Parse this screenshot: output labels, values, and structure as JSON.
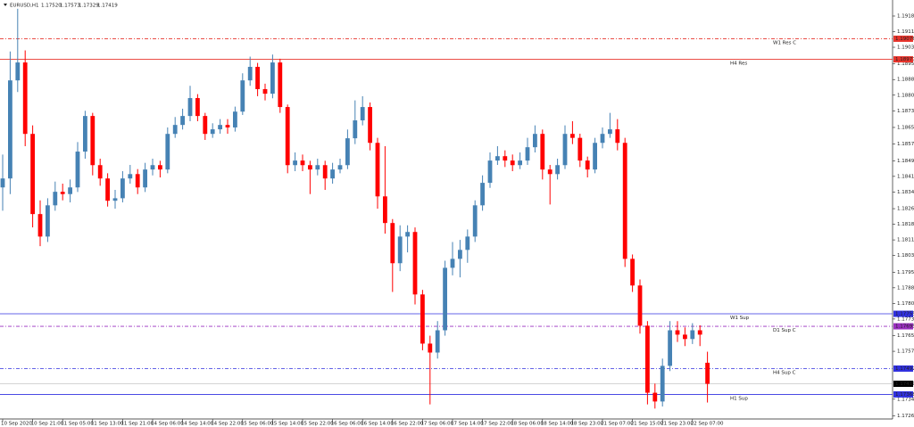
{
  "chart_data": {
    "type": "candlestick",
    "symbol": "EURUSD,H1",
    "quote": [
      "1.17520",
      "1.17573",
      "1.17329",
      "1.17419"
    ],
    "up_color": "#4682b4",
    "down_color": "#ff0000",
    "ylim": [
      1.1725,
      1.19262
    ],
    "yticks": [
      1.19185,
      {
        "value": 1.1911,
        "label": "1.19110"
      },
      1.19035,
      1.18955,
      {
        "value": 1.1888,
        "label": "1.18880"
      },
      1.18805,
      {
        "value": 1.1873,
        "label": "1.18730"
      },
      {
        "value": 1.1865,
        "label": "1.18650"
      },
      {
        "value": 1.1857,
        "label": "1.18570"
      },
      {
        "value": 1.1849,
        "label": "1.18490"
      },
      1.18415,
      {
        "value": 1.1834,
        "label": "1.18340"
      },
      {
        "value": 1.1826,
        "label": "1.18260"
      },
      1.18185,
      {
        "value": 1.1811,
        "label": "1.18110"
      },
      1.18035,
      1.17955,
      {
        "value": 1.1788,
        "label": "1.17880"
      },
      1.17805,
      {
        "value": 1.1773,
        "label": "1.17730"
      },
      {
        "value": 1.1765,
        "label": "1.17650"
      },
      1.17575,
      1.17345,
      1.17265
    ],
    "categories": [
      "10 Sep 2020",
      null,
      null,
      null,
      "10 Sep 21:00",
      null,
      null,
      null,
      "11 Sep 05:00",
      null,
      null,
      null,
      "11 Sep 13:00",
      null,
      null,
      null,
      "11 Sep 21:00",
      null,
      null,
      null,
      "14 Sep 06:00",
      null,
      null,
      null,
      "14 Sep 14:00",
      null,
      null,
      null,
      "14 Sep 22:00",
      null,
      null,
      null,
      "15 Sep 06:00",
      null,
      null,
      null,
      "15 Sep 14:00",
      null,
      null,
      null,
      "15 Sep 22:00",
      null,
      null,
      null,
      "16 Sep 06:00",
      null,
      null,
      null,
      "16 Sep 14:00",
      null,
      null,
      null,
      "16 Sep 22:00",
      null,
      null,
      null,
      "17 Sep 06:00",
      null,
      null,
      null,
      "17 Sep 14:00",
      null,
      null,
      null,
      "17 Sep 22:00",
      null,
      null,
      null,
      "18 Sep 06:00",
      null,
      null,
      null,
      "18 Sep 14:00",
      null,
      null,
      null,
      "18 Sep 23:00",
      null,
      null,
      null,
      "21 Sep 07:00",
      null,
      null,
      null,
      "21 Sep 15:00",
      null,
      null,
      null,
      "21 Sep 23:00",
      null,
      null,
      null,
      "22 Sep 07:00",
      null,
      null
    ],
    "ohlc": [
      [
        1.18362,
        1.1852,
        1.1825,
        1.18405
      ],
      [
        1.18405,
        1.19015,
        1.1833,
        1.18876
      ],
      [
        1.18876,
        1.1922,
        1.1882,
        1.18962
      ],
      [
        1.18962,
        1.1902,
        1.1856,
        1.18619
      ],
      [
        1.18619,
        1.1866,
        1.1817,
        1.18234
      ],
      [
        1.18234,
        1.183,
        1.1808,
        1.18126
      ],
      [
        1.18126,
        1.1831,
        1.181,
        1.18276
      ],
      [
        1.18276,
        1.1839,
        1.1825,
        1.18341
      ],
      [
        1.18341,
        1.1838,
        1.183,
        1.1833
      ],
      [
        1.1833,
        1.184,
        1.1829,
        1.18362
      ],
      [
        1.18362,
        1.1858,
        1.1834,
        1.18534
      ],
      [
        1.18534,
        1.1873,
        1.185,
        1.18705
      ],
      [
        1.18705,
        1.1872,
        1.1842,
        1.18469
      ],
      [
        1.18469,
        1.185,
        1.1837,
        1.18405
      ],
      [
        1.18405,
        1.1843,
        1.1827,
        1.18298
      ],
      [
        1.18298,
        1.1835,
        1.1826,
        1.1831
      ],
      [
        1.1831,
        1.1844,
        1.1829,
        1.18405
      ],
      [
        1.18405,
        1.1847,
        1.1838,
        1.18426
      ],
      [
        1.18426,
        1.1845,
        1.1833,
        1.18362
      ],
      [
        1.18362,
        1.1848,
        1.1834,
        1.18448
      ],
      [
        1.18448,
        1.185,
        1.1842,
        1.18469
      ],
      [
        1.18469,
        1.1849,
        1.1841,
        1.18448
      ],
      [
        1.18448,
        1.1865,
        1.1843,
        1.18619
      ],
      [
        1.18619,
        1.187,
        1.186,
        1.18662
      ],
      [
        1.18662,
        1.1874,
        1.1864,
        1.18705
      ],
      [
        1.18705,
        1.1885,
        1.1868,
        1.18791
      ],
      [
        1.18791,
        1.1881,
        1.1868,
        1.18705
      ],
      [
        1.18705,
        1.1872,
        1.1859,
        1.18619
      ],
      [
        1.18619,
        1.1867,
        1.186,
        1.18641
      ],
      [
        1.18641,
        1.1869,
        1.1862,
        1.18662
      ],
      [
        1.18662,
        1.1869,
        1.1862,
        1.1865
      ],
      [
        1.1865,
        1.1875,
        1.1863,
        1.18726
      ],
      [
        1.18726,
        1.1891,
        1.1871,
        1.18876
      ],
      [
        1.18876,
        1.1899,
        1.1885,
        1.18941
      ],
      [
        1.18941,
        1.1896,
        1.188,
        1.18834
      ],
      [
        1.18834,
        1.1886,
        1.1878,
        1.18812
      ],
      [
        1.18812,
        1.19,
        1.1879,
        1.18962
      ],
      [
        1.18962,
        1.1898,
        1.1872,
        1.18748
      ],
      [
        1.18748,
        1.1876,
        1.1843,
        1.18469
      ],
      [
        1.18469,
        1.1853,
        1.1844,
        1.18491
      ],
      [
        1.18491,
        1.1852,
        1.1844,
        1.18469
      ],
      [
        1.18469,
        1.1849,
        1.1833,
        1.18448
      ],
      [
        1.18448,
        1.185,
        1.1842,
        1.18469
      ],
      [
        1.18469,
        1.1849,
        1.1835,
        1.18405
      ],
      [
        1.18405,
        1.1848,
        1.1838,
        1.18448
      ],
      [
        1.18448,
        1.185,
        1.1843,
        1.18469
      ],
      [
        1.18469,
        1.1864,
        1.1845,
        1.18598
      ],
      [
        1.18598,
        1.1878,
        1.1857,
        1.18684
      ],
      [
        1.18684,
        1.188,
        1.1866,
        1.18748
      ],
      [
        1.18748,
        1.1877,
        1.1854,
        1.18576
      ],
      [
        1.18576,
        1.186,
        1.1826,
        1.18319
      ],
      [
        1.18319,
        1.1856,
        1.1814,
        1.18191
      ],
      [
        1.18191,
        1.1821,
        1.1786,
        1.17998
      ],
      [
        1.17998,
        1.1818,
        1.1796,
        1.18126
      ],
      [
        1.18126,
        1.1818,
        1.1805,
        1.18148
      ],
      [
        1.18148,
        1.1817,
        1.178,
        1.17848
      ],
      [
        1.17848,
        1.1787,
        1.1758,
        1.17612
      ],
      [
        1.17612,
        1.1765,
        1.1732,
        1.17569
      ],
      [
        1.17569,
        1.1772,
        1.1754,
        1.17676
      ],
      [
        1.17676,
        1.1801,
        1.1765,
        1.17976
      ],
      [
        1.17976,
        1.181,
        1.1794,
        1.18019
      ],
      [
        1.18019,
        1.1811,
        1.1793,
        1.18062
      ],
      [
        1.18062,
        1.1816,
        1.18,
        1.18126
      ],
      [
        1.18126,
        1.183,
        1.181,
        1.18276
      ],
      [
        1.18276,
        1.1842,
        1.1825,
        1.18384
      ],
      [
        1.18384,
        1.1853,
        1.1836,
        1.18491
      ],
      [
        1.18491,
        1.1856,
        1.1847,
        1.18512
      ],
      [
        1.18512,
        1.1854,
        1.1846,
        1.18491
      ],
      [
        1.18491,
        1.1852,
        1.1844,
        1.18469
      ],
      [
        1.18469,
        1.1853,
        1.1845,
        1.18491
      ],
      [
        1.18491,
        1.186,
        1.1847,
        1.18555
      ],
      [
        1.18555,
        1.1866,
        1.1853,
        1.18619
      ],
      [
        1.18619,
        1.1864,
        1.184,
        1.18448
      ],
      [
        1.18448,
        1.1847,
        1.1828,
        1.18426
      ],
      [
        1.18426,
        1.185,
        1.184,
        1.18469
      ],
      [
        1.18469,
        1.1866,
        1.1845,
        1.18619
      ],
      [
        1.18619,
        1.1868,
        1.1857,
        1.186
      ],
      [
        1.186,
        1.1862,
        1.1846,
        1.18491
      ],
      [
        1.18491,
        1.1851,
        1.1841,
        1.18448
      ],
      [
        1.18448,
        1.186,
        1.1843,
        1.18576
      ],
      [
        1.18576,
        1.1865,
        1.1855,
        1.18619
      ],
      [
        1.18619,
        1.1872,
        1.186,
        1.18641
      ],
      [
        1.18641,
        1.1869,
        1.1854,
        1.18576
      ],
      [
        1.18576,
        1.186,
        1.1798,
        1.18019
      ],
      [
        1.18019,
        1.1804,
        1.1786,
        1.17891
      ],
      [
        1.17891,
        1.1792,
        1.1766,
        1.17698
      ],
      [
        1.17698,
        1.1772,
        1.1732,
        1.17376
      ],
      [
        1.17376,
        1.1742,
        1.173,
        1.17334
      ],
      [
        1.17334,
        1.1754,
        1.1731,
        1.17505
      ],
      [
        1.17505,
        1.1772,
        1.1748,
        1.17676
      ],
      [
        1.17676,
        1.1772,
        1.1762,
        1.17655
      ],
      [
        1.17655,
        1.1769,
        1.176,
        1.17634
      ],
      [
        1.17634,
        1.1771,
        1.1761,
        1.17676
      ],
      [
        1.17676,
        1.177,
        1.176,
        1.17655
      ],
      [
        1.1752,
        1.17573,
        1.17329,
        1.17419
      ]
    ],
    "levels": [
      {
        "label": "W1 Res C",
        "value": 1.19076,
        "color": "#e8342c",
        "style": "dashdot"
      },
      {
        "label": "H4 Res",
        "value": 1.18977,
        "color": "#e8342c",
        "style": "solid"
      },
      {
        "label": "W1 Sup",
        "value": 1.17755,
        "color": "#3030e0",
        "style": "solid"
      },
      {
        "label": "D1 Sup C",
        "value": 1.17695,
        "color": "#9a2fc0",
        "style": "dashdot"
      },
      {
        "label": "H4 Sup C",
        "value": 1.17492,
        "color": "#3030e0",
        "style": "dashdot"
      },
      {
        "label": "H1 Sup",
        "value": 1.17368,
        "color": "#3030e0",
        "style": "solid"
      }
    ],
    "current_price": 1.17419
  }
}
